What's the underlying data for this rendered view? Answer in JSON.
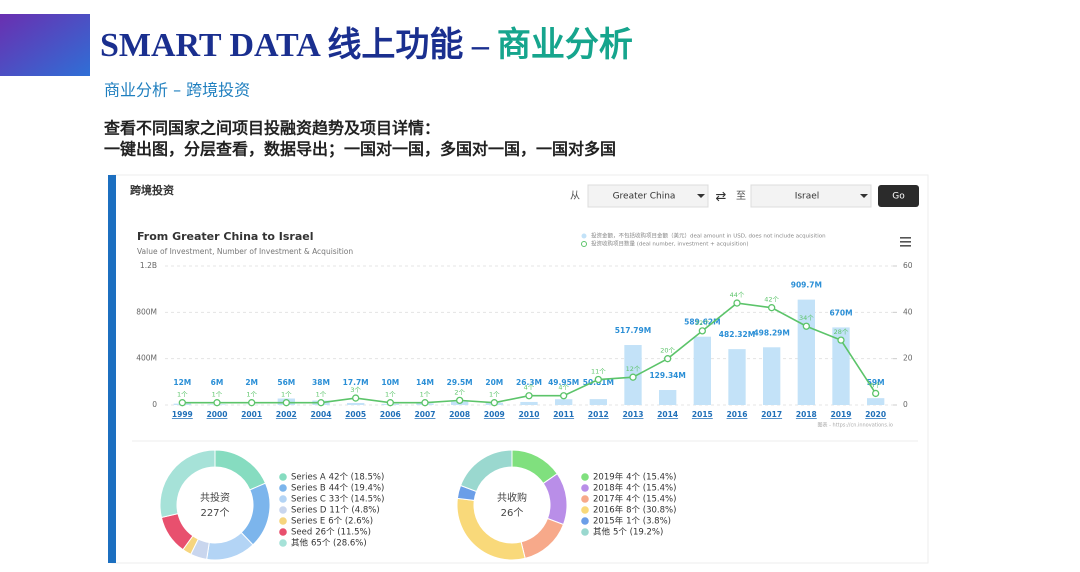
{
  "header": {
    "title_main": "SMART DATA 线上功能 –",
    "title_accent": "商业分析",
    "subtitle": "商业分析 – 跨境投资",
    "description": [
      "查看不同国家之间项目投融资趋势及项目详情：",
      "一键出图，分层查看，数据导出；一国对一国，多国对一国，一国对多国"
    ]
  },
  "panel": {
    "title": "跨境投资",
    "from_label": "从",
    "from_value": "Greater China",
    "to_label": "至",
    "to_value": "Israel",
    "button": "Go"
  },
  "chart_data": [
    {
      "type": "combo",
      "title": "From Greater China to Israel",
      "subtitle": "Value of Investment, Number of Investment & Acquisition",
      "source": "图表 - https://cn.innovations.io",
      "categories": [
        "1999",
        "2000",
        "2001",
        "2002",
        "2004",
        "2005",
        "2006",
        "2007",
        "2008",
        "2009",
        "2010",
        "2011",
        "2012",
        "2013",
        "2014",
        "2015",
        "2016",
        "2017",
        "2018",
        "2019",
        "2020"
      ],
      "ylim": [
        0,
        1200
      ],
      "yticks": [
        0,
        {
          "value": 400,
          "label": "400M"
        },
        {
          "value": 800,
          "label": "800M"
        },
        {
          "value": 1200,
          "label": "1.2B"
        }
      ],
      "y2lim": [
        0,
        60
      ],
      "y2ticks": [
        0,
        20,
        40,
        60
      ],
      "grid": true,
      "series": [
        {
          "name": "投资金额，不包括收购项目金额（美元）deal amount in USD, does not include acquisition",
          "type": "bar",
          "color": "#c3e2f8",
          "label_color": "#2b8fd6",
          "values": [
            12,
            6,
            2,
            56,
            38,
            17.7,
            10,
            14,
            29.5,
            20,
            26.3,
            49.95,
            50.81,
            517.79,
            129.34,
            589.62,
            482.32,
            498.29,
            909.7,
            670,
            59
          ],
          "value_labels": [
            "12M",
            "6M",
            "2M",
            "56M",
            "38M",
            "17.7M",
            "10M",
            "14M",
            "29.5M",
            "20M",
            "26.3M",
            "49.95M",
            "50.81M",
            "517.79M",
            "129.34M",
            "589.62M",
            "482.32M",
            "498.29M",
            "909.7M",
            "670M",
            "59M"
          ]
        },
        {
          "name": "投资收购项目数量 (deal number, investment + acquisition)",
          "type": "line",
          "axis": "y2",
          "color": "#5cc46a",
          "values": [
            1,
            1,
            1,
            1,
            1,
            3,
            1,
            1,
            2,
            1,
            4,
            4,
            11,
            12,
            20,
            32,
            44,
            42,
            34,
            28,
            5
          ],
          "value_labels": [
            "1个",
            "1个",
            "1个",
            "1个",
            "1个",
            "3个",
            "1个",
            "1个",
            "2个",
            "1个",
            "4个",
            "4个",
            "11个",
            "12个",
            "20个",
            "32个",
            "44个",
            "42个",
            "34个",
            "28个",
            "5个"
          ]
        }
      ]
    },
    {
      "type": "pie",
      "center_label": "共投资",
      "total": 227,
      "total_label": "227个",
      "categories": [
        "Series A",
        "Series B",
        "Series C",
        "Series D",
        "Series E",
        "Seed",
        "其他"
      ],
      "values": [
        42,
        44,
        33,
        11,
        6,
        26,
        65
      ],
      "value_labels": [
        "42个 (18.5%)",
        "44个 (19.4%)",
        "33个 (14.5%)",
        "11个 (4.8%)",
        "6个 (2.6%)",
        "26个 (11.5%)",
        "65个 (28.6%)"
      ],
      "colors": [
        "#86dcc0",
        "#7cb5ec",
        "#b3d4f5",
        "#c9d6ee",
        "#f6d57e",
        "#e8506e",
        "#a6e2d8"
      ]
    },
    {
      "type": "pie",
      "center_label": "共收购",
      "total": 26,
      "total_label": "26个",
      "categories": [
        "2019年",
        "2018年",
        "2017年",
        "2016年",
        "2015年",
        "其他"
      ],
      "values": [
        4,
        4,
        4,
        8,
        1,
        5
      ],
      "value_labels": [
        "4个 (15.4%)",
        "4个 (15.4%)",
        "4个 (15.4%)",
        "8个 (30.8%)",
        "1个 (3.8%)",
        "5个 (19.2%)"
      ],
      "colors": [
        "#80e07e",
        "#b98ee8",
        "#f7a98a",
        "#f9d97a",
        "#6b9ee8",
        "#9ad8cf"
      ]
    }
  ]
}
